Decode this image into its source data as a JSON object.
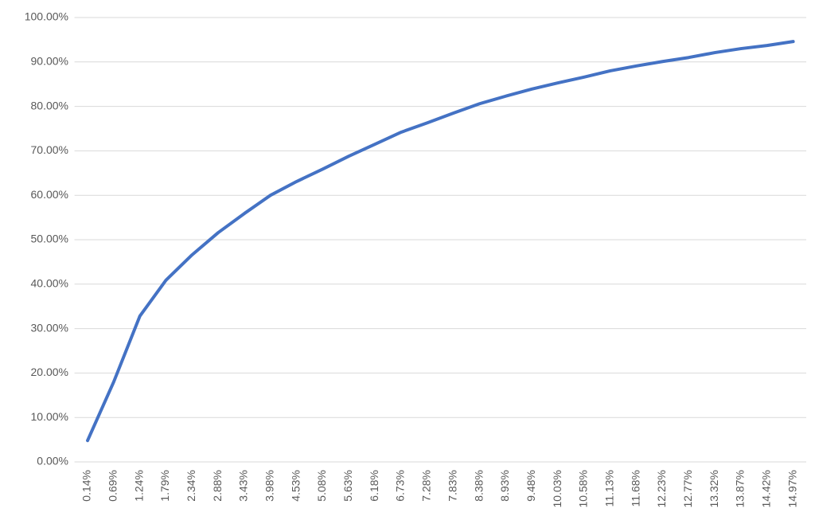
{
  "chart_data": {
    "type": "line",
    "categories": [
      "0.14%",
      "0.69%",
      "1.24%",
      "1.79%",
      "2.34%",
      "2.88%",
      "3.43%",
      "3.98%",
      "4.53%",
      "5.08%",
      "5.63%",
      "6.18%",
      "6.73%",
      "7.28%",
      "7.83%",
      "8.38%",
      "8.93%",
      "9.48%",
      "10.03%",
      "10.58%",
      "11.13%",
      "11.68%",
      "12.23%",
      "12.77%",
      "13.32%",
      "13.87%",
      "14.42%",
      "14.97%"
    ],
    "values": [
      4.8,
      18,
      32.8,
      40.9,
      46.6,
      51.6,
      55.9,
      60.0,
      63.1,
      65.9,
      68.8,
      71.5,
      74.2,
      76.3,
      78.5,
      80.6,
      82.3,
      83.9,
      85.3,
      86.6,
      88.0,
      89.1,
      90.1,
      91.0,
      92.1,
      93.0,
      93.7,
      94.6
    ],
    "color": "#4472c4",
    "ylim": [
      0,
      100
    ],
    "yticks": [
      {
        "value": 0,
        "label": "0.00%"
      },
      {
        "value": 10,
        "label": "10.00%"
      },
      {
        "value": 20,
        "label": "20.00%"
      },
      {
        "value": 30,
        "label": "30.00%"
      },
      {
        "value": 40,
        "label": "40.00%"
      },
      {
        "value": 50,
        "label": "50.00%"
      },
      {
        "value": 60,
        "label": "60.00%"
      },
      {
        "value": 70,
        "label": "70.00%"
      },
      {
        "value": 80,
        "label": "80.00%"
      },
      {
        "value": 90,
        "label": "90.00%"
      },
      {
        "value": 100,
        "label": "100.00%"
      }
    ],
    "grid": true
  }
}
